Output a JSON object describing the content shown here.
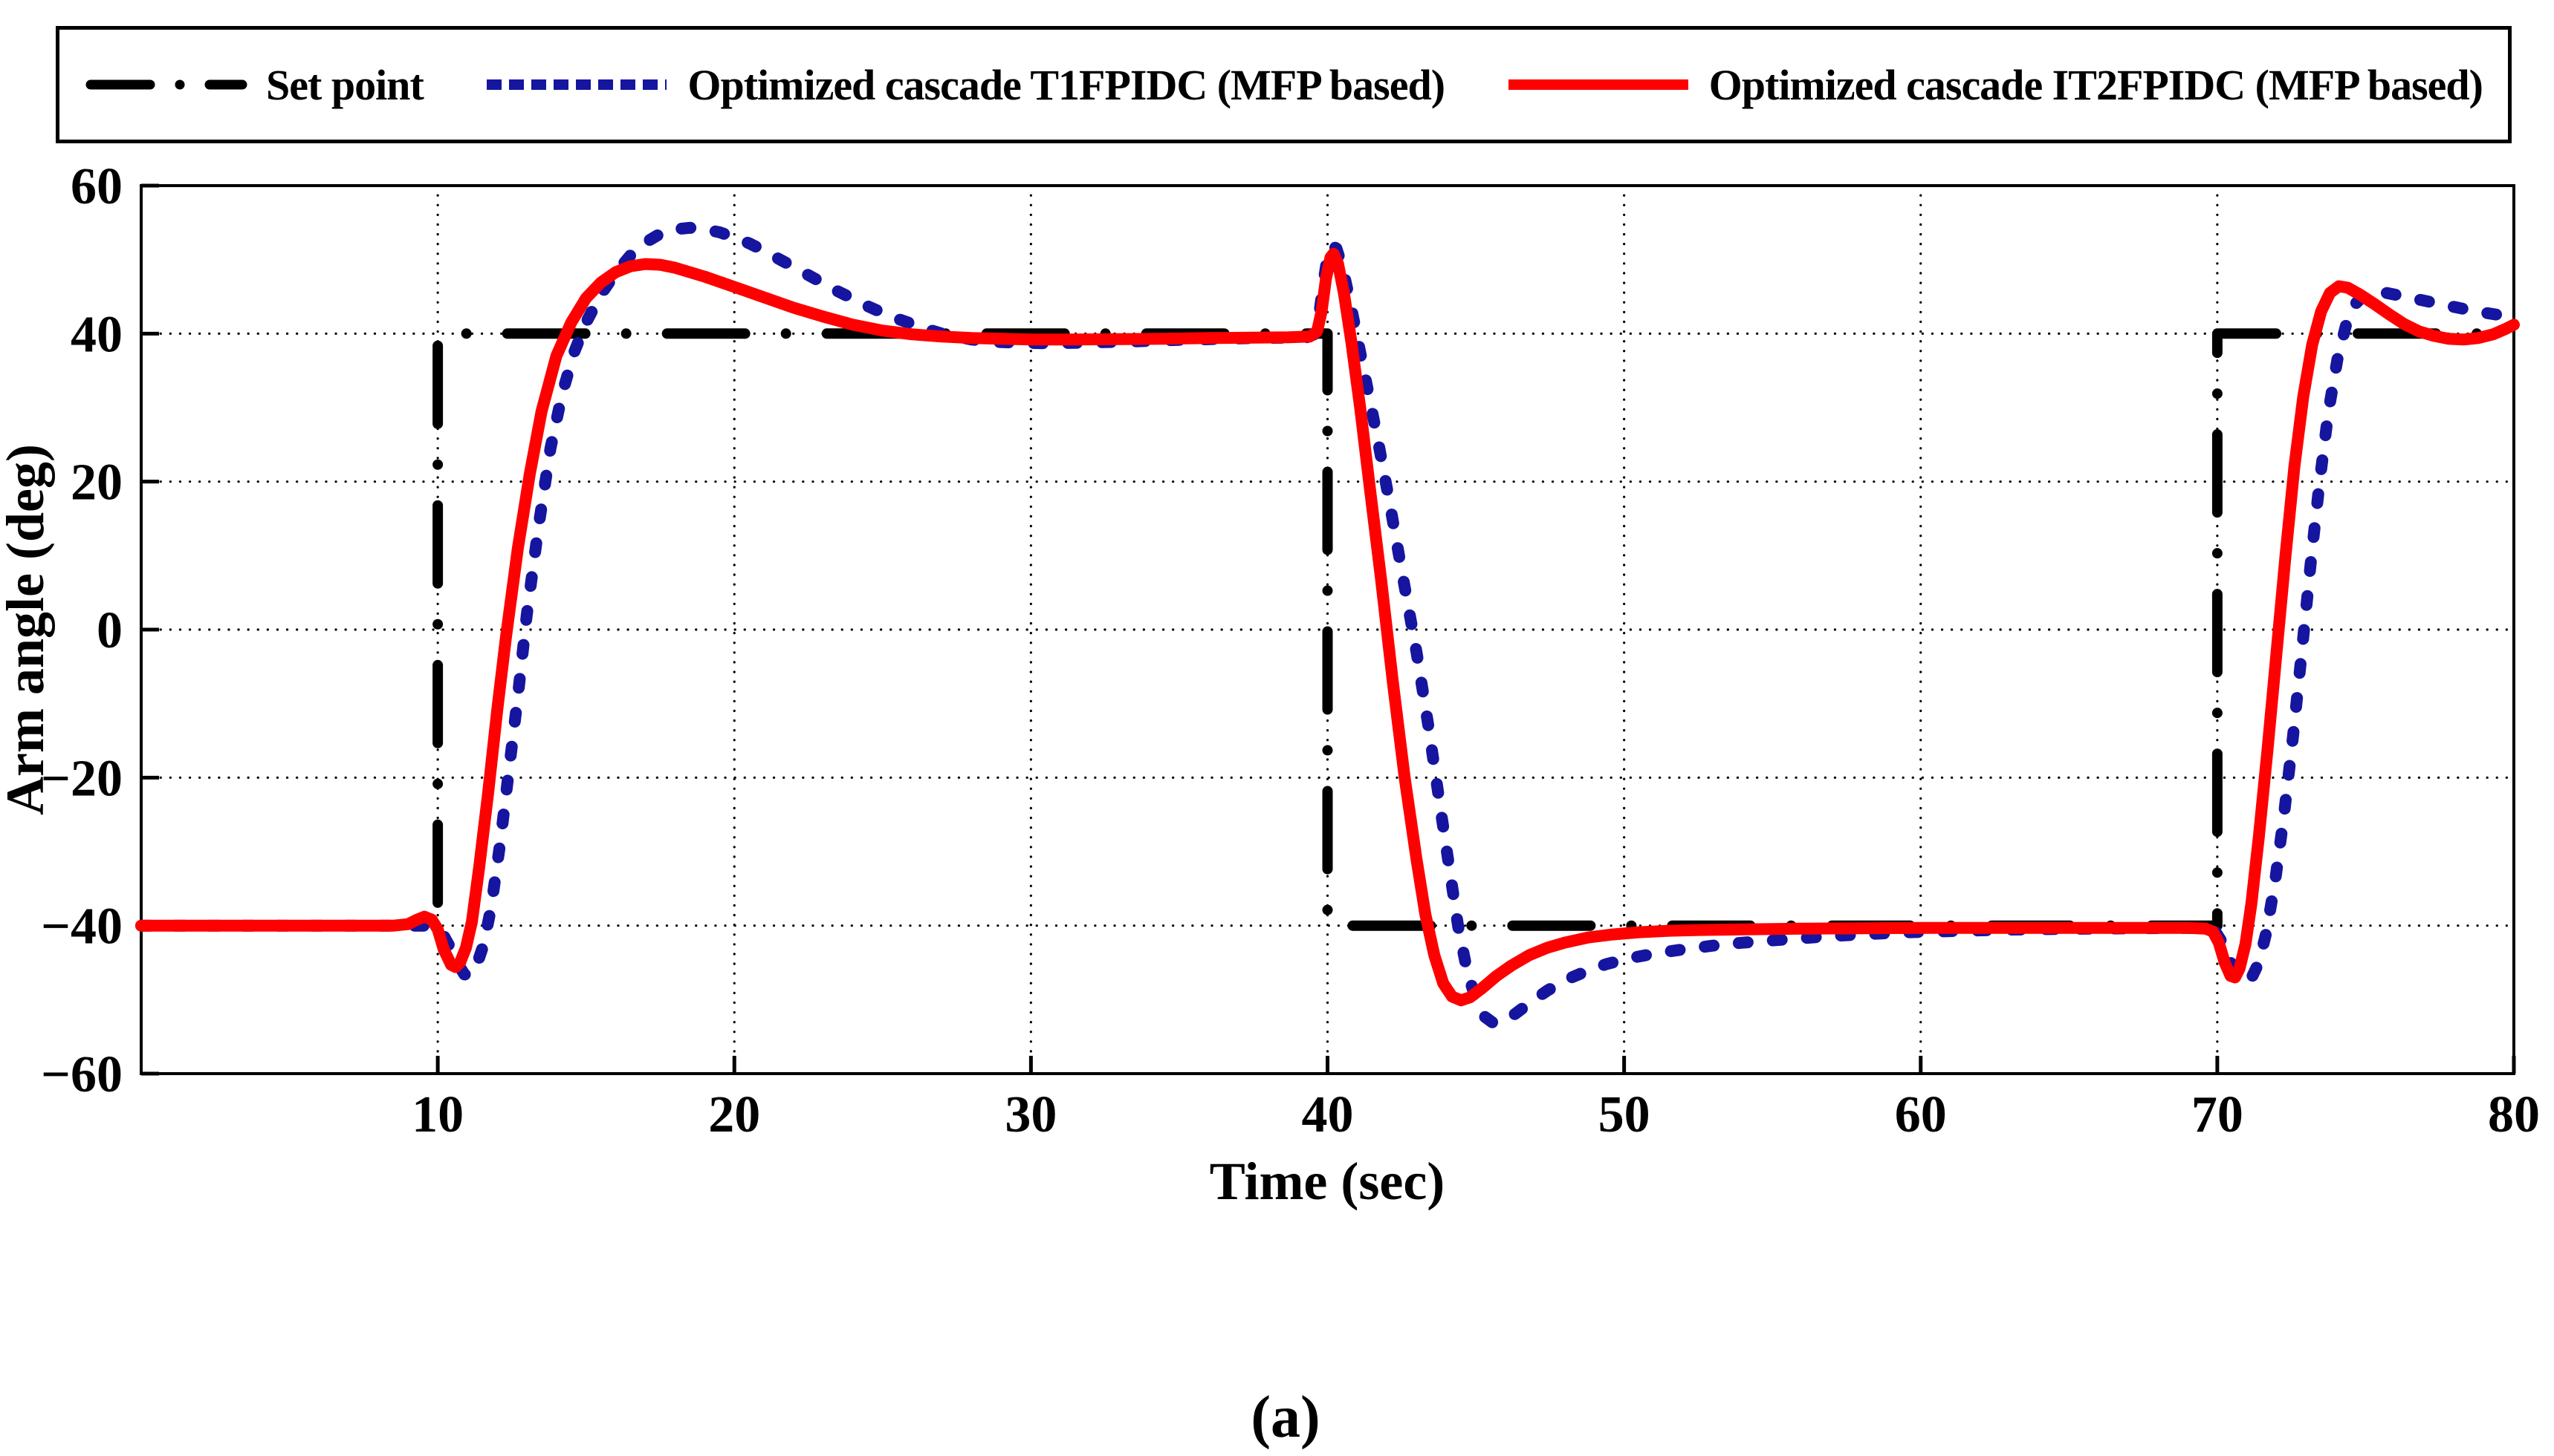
{
  "figure": {
    "caption": "(a)",
    "background": "#ffffff"
  },
  "legend": {
    "items": [
      {
        "label": "Set point",
        "color": "#000000",
        "style": "dashdot"
      },
      {
        "label": "Optimized cascade T1FPIDC (MFP based)",
        "color": "#1515A0",
        "style": "dashed"
      },
      {
        "label": "Optimized cascade IT2FPIDC (MFP based)",
        "color": "#FF0000",
        "style": "solid"
      }
    ]
  },
  "chart_data": {
    "type": "line",
    "title": "",
    "xlabel": "Time (sec)",
    "ylabel": "Arm angle (deg)",
    "xlim": [
      0,
      80
    ],
    "ylim": [
      -60,
      60
    ],
    "xticks": [
      10,
      20,
      30,
      40,
      50,
      60,
      70,
      80
    ],
    "yticks": [
      60,
      40,
      20,
      0,
      -20,
      -40,
      -60
    ],
    "xtick_labels": [
      "10",
      "20",
      "30",
      "40",
      "50",
      "60",
      "70",
      "80"
    ],
    "ytick_labels": [
      "60",
      "40",
      "20",
      "0",
      "−20",
      "−40",
      "−60"
    ],
    "grid": true,
    "grid_style": "dotted",
    "legend_position": "top",
    "series": [
      {
        "name": "Set point",
        "color": "#000000",
        "style": "dashdot",
        "width": 14,
        "points": [
          [
            0,
            -40
          ],
          [
            10,
            -40
          ],
          [
            10,
            40
          ],
          [
            40,
            40
          ],
          [
            40,
            -40
          ],
          [
            70,
            -40
          ],
          [
            70,
            40
          ],
          [
            80,
            40
          ]
        ]
      },
      {
        "name": "Optimized cascade T1FPIDC (MFP based)",
        "color": "#1515A0",
        "style": "dashed",
        "width": 16,
        "points": [
          [
            0,
            -40
          ],
          [
            9.6,
            -40
          ],
          [
            9.9,
            -40.2
          ],
          [
            10.15,
            -41
          ],
          [
            10.4,
            -42.8
          ],
          [
            10.65,
            -45
          ],
          [
            10.9,
            -46.6
          ],
          [
            11.1,
            -46.7
          ],
          [
            11.3,
            -45.5
          ],
          [
            11.55,
            -42.5
          ],
          [
            11.8,
            -37.5
          ],
          [
            12.1,
            -29
          ],
          [
            12.4,
            -19
          ],
          [
            12.7,
            -9
          ],
          [
            13,
            2
          ],
          [
            13.4,
            14
          ],
          [
            13.8,
            24.5
          ],
          [
            14.2,
            32
          ],
          [
            14.6,
            37.5
          ],
          [
            15,
            41.5
          ],
          [
            15.5,
            45.3
          ],
          [
            16,
            48.2
          ],
          [
            16.5,
            50.6
          ],
          [
            17,
            52.3
          ],
          [
            17.5,
            53.5
          ],
          [
            18,
            54.1
          ],
          [
            18.5,
            54.3
          ],
          [
            19,
            54.1
          ],
          [
            19.5,
            53.7
          ],
          [
            20,
            53
          ],
          [
            20.5,
            52.2
          ],
          [
            21,
            51.2
          ],
          [
            21.5,
            50.1
          ],
          [
            22,
            49
          ],
          [
            22.5,
            47.9
          ],
          [
            23,
            46.8
          ],
          [
            23.5,
            45.7
          ],
          [
            24,
            44.7
          ],
          [
            24.5,
            43.7
          ],
          [
            25,
            42.8
          ],
          [
            25.5,
            42
          ],
          [
            26,
            41.3
          ],
          [
            26.5,
            40.6
          ],
          [
            27,
            40
          ],
          [
            27.5,
            39.6
          ],
          [
            28,
            39.2
          ],
          [
            28.5,
            39
          ],
          [
            29,
            38.85
          ],
          [
            29.7,
            38.75
          ],
          [
            30.5,
            38.7
          ],
          [
            31.5,
            38.75
          ],
          [
            32.5,
            38.85
          ],
          [
            33.5,
            38.95
          ],
          [
            34.5,
            39.1
          ],
          [
            35.5,
            39.2
          ],
          [
            36.5,
            39.3
          ],
          [
            37.5,
            39.4
          ],
          [
            38.5,
            39.45
          ],
          [
            39.3,
            39.5
          ],
          [
            39.55,
            39.9
          ],
          [
            39.7,
            42
          ],
          [
            39.85,
            46.5
          ],
          [
            40,
            50.5
          ],
          [
            40.15,
            51.9
          ],
          [
            40.3,
            51.5
          ],
          [
            40.5,
            49
          ],
          [
            40.75,
            44.5
          ],
          [
            41,
            39.5
          ],
          [
            41.3,
            33.5
          ],
          [
            41.7,
            25.5
          ],
          [
            42.1,
            17
          ],
          [
            42.5,
            8
          ],
          [
            43,
            -3
          ],
          [
            43.4,
            -13
          ],
          [
            43.8,
            -24
          ],
          [
            44.1,
            -32
          ],
          [
            44.4,
            -40
          ],
          [
            44.7,
            -46
          ],
          [
            45,
            -50
          ],
          [
            45.3,
            -52.3
          ],
          [
            45.6,
            -53.2
          ],
          [
            45.9,
            -53
          ],
          [
            46.3,
            -52
          ],
          [
            46.8,
            -50.5
          ],
          [
            47.4,
            -48.8
          ],
          [
            48,
            -47.4
          ],
          [
            48.7,
            -46.2
          ],
          [
            49.4,
            -45.2
          ],
          [
            50.2,
            -44.4
          ],
          [
            51,
            -43.8
          ],
          [
            52,
            -43.2
          ],
          [
            53,
            -42.7
          ],
          [
            54,
            -42.3
          ],
          [
            55,
            -42
          ],
          [
            56,
            -41.7
          ],
          [
            57,
            -41.4
          ],
          [
            58,
            -41.2
          ],
          [
            59,
            -41
          ],
          [
            60,
            -40.85
          ],
          [
            61.5,
            -40.7
          ],
          [
            63,
            -40.55
          ],
          [
            64.5,
            -40.45
          ],
          [
            66,
            -40.4
          ],
          [
            67.5,
            -40.35
          ],
          [
            69,
            -40.3
          ],
          [
            69.7,
            -40.4
          ],
          [
            69.95,
            -40.9
          ],
          [
            70.2,
            -42.5
          ],
          [
            70.45,
            -45
          ],
          [
            70.7,
            -46.9
          ],
          [
            70.95,
            -47.6
          ],
          [
            71.15,
            -47.1
          ],
          [
            71.4,
            -45
          ],
          [
            71.65,
            -41
          ],
          [
            71.95,
            -34
          ],
          [
            72.25,
            -25
          ],
          [
            72.55,
            -14.5
          ],
          [
            72.85,
            -3
          ],
          [
            73.15,
            9
          ],
          [
            73.45,
            20
          ],
          [
            73.75,
            29.5
          ],
          [
            74.05,
            36.5
          ],
          [
            74.35,
            41.3
          ],
          [
            74.65,
            44
          ],
          [
            74.95,
            45.2
          ],
          [
            75.3,
            45.6
          ],
          [
            75.7,
            45.5
          ],
          [
            76.2,
            45.1
          ],
          [
            76.8,
            44.6
          ],
          [
            77.4,
            44.1
          ],
          [
            78,
            43.6
          ],
          [
            78.6,
            43.1
          ],
          [
            79.2,
            42.7
          ],
          [
            79.7,
            42.4
          ],
          [
            80,
            42.3
          ]
        ]
      },
      {
        "name": "Optimized cascade IT2FPIDC (MFP based)",
        "color": "#FF0000",
        "style": "solid",
        "width": 16,
        "points": [
          [
            0,
            -40
          ],
          [
            8.5,
            -40
          ],
          [
            9,
            -39.8
          ],
          [
            9.3,
            -39.2
          ],
          [
            9.55,
            -38.8
          ],
          [
            9.8,
            -39.2
          ],
          [
            10,
            -40.5
          ],
          [
            10.2,
            -43.2
          ],
          [
            10.45,
            -45.3
          ],
          [
            10.6,
            -45.6
          ],
          [
            10.75,
            -45
          ],
          [
            10.95,
            -43
          ],
          [
            11.15,
            -39.5
          ],
          [
            11.4,
            -32
          ],
          [
            11.7,
            -22
          ],
          [
            12,
            -11
          ],
          [
            12.3,
            -1
          ],
          [
            12.7,
            11
          ],
          [
            13.1,
            21
          ],
          [
            13.5,
            29.5
          ],
          [
            14,
            37
          ],
          [
            14.5,
            41.5
          ],
          [
            15,
            44.8
          ],
          [
            15.5,
            46.9
          ],
          [
            16,
            48.3
          ],
          [
            16.5,
            49.1
          ],
          [
            17,
            49.4
          ],
          [
            17.5,
            49.3
          ],
          [
            18,
            48.9
          ],
          [
            19,
            47.7
          ],
          [
            20,
            46.3
          ],
          [
            21,
            44.9
          ],
          [
            22,
            43.5
          ],
          [
            23,
            42.3
          ],
          [
            24,
            41.2
          ],
          [
            25,
            40.4
          ],
          [
            26,
            39.9
          ],
          [
            27,
            39.6
          ],
          [
            28,
            39.4
          ],
          [
            29,
            39.3
          ],
          [
            30,
            39.2
          ],
          [
            31.5,
            39.2
          ],
          [
            33,
            39.25
          ],
          [
            34.5,
            39.3
          ],
          [
            36,
            39.4
          ],
          [
            37.5,
            39.45
          ],
          [
            38.7,
            39.5
          ],
          [
            39.4,
            39.6
          ],
          [
            39.65,
            40.3
          ],
          [
            39.8,
            43
          ],
          [
            39.95,
            47.5
          ],
          [
            40.1,
            50.3
          ],
          [
            40.2,
            50.8
          ],
          [
            40.35,
            49.5
          ],
          [
            40.55,
            45.5
          ],
          [
            40.8,
            39
          ],
          [
            41.1,
            30
          ],
          [
            41.4,
            20
          ],
          [
            41.8,
            7
          ],
          [
            42.2,
            -7
          ],
          [
            42.6,
            -20
          ],
          [
            43,
            -31
          ],
          [
            43.3,
            -38.5
          ],
          [
            43.6,
            -44
          ],
          [
            43.9,
            -47.8
          ],
          [
            44.2,
            -49.6
          ],
          [
            44.5,
            -50.1
          ],
          [
            44.8,
            -49.7
          ],
          [
            45.2,
            -48.5
          ],
          [
            45.7,
            -46.8
          ],
          [
            46.2,
            -45.4
          ],
          [
            46.8,
            -44
          ],
          [
            47.4,
            -43
          ],
          [
            48,
            -42.3
          ],
          [
            48.8,
            -41.6
          ],
          [
            49.6,
            -41.2
          ],
          [
            50.5,
            -40.9
          ],
          [
            51.5,
            -40.7
          ],
          [
            52.5,
            -40.6
          ],
          [
            54,
            -40.5
          ],
          [
            56,
            -40.4
          ],
          [
            58,
            -40.35
          ],
          [
            60,
            -40.3
          ],
          [
            63,
            -40.3
          ],
          [
            66,
            -40.3
          ],
          [
            69,
            -40.3
          ],
          [
            69.6,
            -40.4
          ],
          [
            69.85,
            -40.8
          ],
          [
            70.05,
            -42.3
          ],
          [
            70.25,
            -45
          ],
          [
            70.45,
            -46.8
          ],
          [
            70.6,
            -47
          ],
          [
            70.75,
            -45.8
          ],
          [
            70.95,
            -42.5
          ],
          [
            71.15,
            -37
          ],
          [
            71.4,
            -28
          ],
          [
            71.7,
            -16
          ],
          [
            72,
            -3
          ],
          [
            72.3,
            10
          ],
          [
            72.6,
            22
          ],
          [
            72.9,
            31.5
          ],
          [
            73.2,
            38.5
          ],
          [
            73.5,
            43
          ],
          [
            73.8,
            45.5
          ],
          [
            74.1,
            46.4
          ],
          [
            74.4,
            46.2
          ],
          [
            74.8,
            45.3
          ],
          [
            75.3,
            44
          ],
          [
            75.8,
            42.6
          ],
          [
            76.3,
            41.3
          ],
          [
            76.8,
            40.3
          ],
          [
            77.3,
            39.7
          ],
          [
            77.8,
            39.3
          ],
          [
            78.3,
            39.2
          ],
          [
            78.8,
            39.4
          ],
          [
            79.3,
            39.9
          ],
          [
            79.7,
            40.6
          ],
          [
            80,
            41.2
          ]
        ]
      }
    ]
  }
}
